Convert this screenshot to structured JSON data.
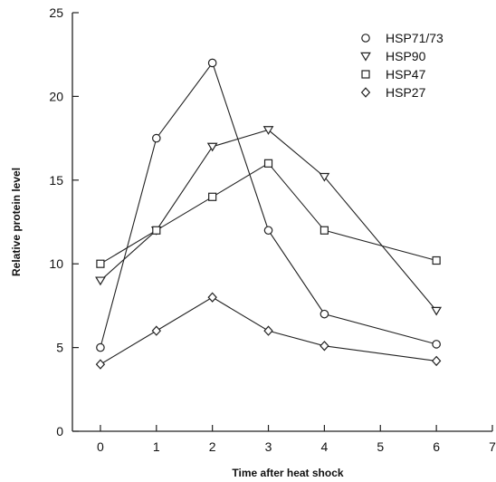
{
  "chart_data": {
    "type": "line",
    "xlabel": "Time after heat shock",
    "ylabel": "Relative protein level",
    "xlim": [
      -0.5,
      7
    ],
    "ylim": [
      0,
      25
    ],
    "x_ticks": [
      "0",
      "1",
      "2",
      "3",
      "4",
      "5",
      "6",
      "7"
    ],
    "y_ticks": [
      "0",
      "5",
      "10",
      "15",
      "20",
      "25"
    ],
    "legend_position": "top-right",
    "grid": false,
    "x": [
      0,
      1,
      2,
      3,
      4,
      6
    ],
    "series": [
      {
        "name": "HSP71/73",
        "marker": "circle",
        "values": [
          5,
          17.5,
          22,
          12,
          7,
          5.2
        ]
      },
      {
        "name": "HSP90",
        "marker": "triangle-down",
        "values": [
          9,
          12,
          17,
          18,
          15.2,
          7.2
        ]
      },
      {
        "name": "HSP47",
        "marker": "square",
        "values": [
          10,
          12,
          14,
          16,
          12,
          10.2
        ]
      },
      {
        "name": "HSP27",
        "marker": "diamond",
        "values": [
          4,
          6,
          8,
          6,
          5.1,
          4.2
        ]
      }
    ]
  }
}
